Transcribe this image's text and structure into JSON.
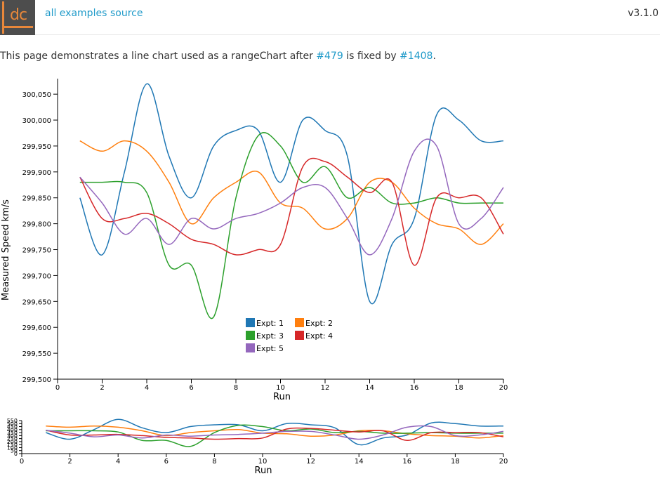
{
  "header": {
    "logo_text": "dc",
    "links": [
      "all examples",
      "source"
    ],
    "version": "v3.1.0"
  },
  "intro": {
    "prefix": "This page demonstrates a line chart used as a rangeChart after ",
    "link1": "#479",
    "middle": " is fixed by ",
    "link2": "#1408",
    "suffix": "."
  },
  "colors": {
    "Expt: 1": "#1f77b4",
    "Expt: 2": "#ff7f0e",
    "Expt: 3": "#2ca02c",
    "Expt: 4": "#d62728",
    "Expt: 5": "#9467bd",
    "link": "#1f9ac9",
    "logo_bg": "#4d4d4d",
    "logo_accent": "#e8873a"
  },
  "chart_data": [
    {
      "type": "line",
      "title": "",
      "xlabel": "Run",
      "ylabel": "Measured Speed km/s",
      "xlim": [
        0,
        20
      ],
      "ylim": [
        299500,
        300080
      ],
      "xticks": [
        0,
        2,
        4,
        6,
        8,
        10,
        12,
        14,
        16,
        18,
        20
      ],
      "yticks": [
        299500,
        299550,
        299600,
        299650,
        299700,
        299750,
        299800,
        299850,
        299900,
        299950,
        300000,
        300050
      ],
      "ytick_labels": [
        "299,500",
        "299,550",
        "299,600",
        "299,650",
        "299,700",
        "299,750",
        "299,800",
        "299,850",
        "299,900",
        "299,950",
        "300,000",
        "300,050"
      ],
      "legend": "bottom-center",
      "x": [
        1,
        2,
        3,
        4,
        5,
        6,
        7,
        8,
        9,
        10,
        11,
        12,
        13,
        14,
        15,
        16,
        17,
        18,
        19,
        20
      ],
      "series": [
        {
          "name": "Expt: 1",
          "values": [
            299850,
            299740,
            299900,
            300070,
            299930,
            299850,
            299950,
            299980,
            299980,
            299880,
            300000,
            299980,
            299930,
            299650,
            299760,
            299810,
            300010,
            300000,
            299960,
            299960
          ]
        },
        {
          "name": "Expt: 2",
          "values": [
            299960,
            299940,
            299960,
            299940,
            299880,
            299800,
            299850,
            299880,
            299900,
            299840,
            299830,
            299790,
            299810,
            299880,
            299880,
            299830,
            299800,
            299790,
            299760,
            299800
          ]
        },
        {
          "name": "Expt: 3",
          "values": [
            299880,
            299880,
            299880,
            299860,
            299720,
            299720,
            299620,
            299850,
            299970,
            299950,
            299880,
            299910,
            299850,
            299870,
            299840,
            299840,
            299850,
            299840,
            299840,
            299840
          ]
        },
        {
          "name": "Expt: 4",
          "values": [
            299890,
            299810,
            299810,
            299820,
            299800,
            299770,
            299760,
            299740,
            299750,
            299760,
            299910,
            299920,
            299890,
            299860,
            299880,
            299720,
            299850,
            299850,
            299850,
            299780
          ]
        },
        {
          "name": "Expt: 5",
          "values": [
            299890,
            299840,
            299780,
            299810,
            299760,
            299810,
            299790,
            299810,
            299820,
            299840,
            299870,
            299870,
            299810,
            299740,
            299810,
            299940,
            299950,
            299800,
            299810,
            299870
          ]
        }
      ]
    },
    {
      "type": "line",
      "title": "",
      "xlabel": "Run",
      "ylabel": "",
      "xlim": [
        0,
        20
      ],
      "ylim": [
        0,
        550
      ],
      "xticks": [
        0,
        2,
        4,
        6,
        8,
        10,
        12,
        14,
        16,
        18,
        20
      ],
      "yticks": [
        0,
        50,
        100,
        150,
        200,
        250,
        300,
        350,
        400,
        450,
        500,
        550
      ],
      "ytick_labels": [
        "0",
        "50",
        "100",
        "150",
        "200",
        "250",
        "300",
        "350",
        "400",
        "450",
        "500",
        "550"
      ],
      "note_offset": 299500
    }
  ]
}
